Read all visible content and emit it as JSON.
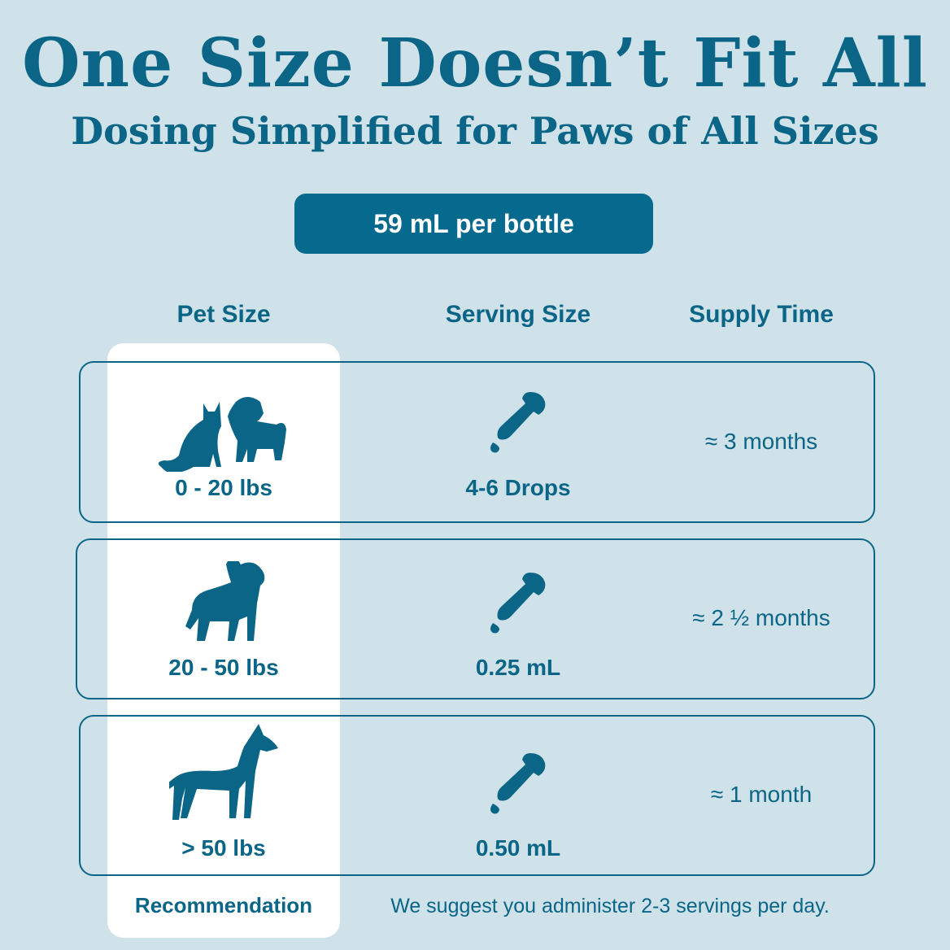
{
  "header": {
    "title": "One Size Doesn’t Fit All",
    "subtitle": "Dosing Simplified for Paws of All Sizes"
  },
  "bottle_badge": "59 mL per bottle",
  "columns": {
    "pet_size": "Pet Size",
    "serving_size": "Serving Size",
    "supply_time": "Supply Time"
  },
  "rows": [
    {
      "pet_size": "0 - 20 lbs",
      "pet_icon": "cat-and-small-dog-icon",
      "serving": "4-6 Drops",
      "serving_icon": "dropper-icon",
      "supply": "≈ 3 months"
    },
    {
      "pet_size": "20 - 50 lbs",
      "pet_icon": "medium-dog-icon",
      "serving": "0.25 mL",
      "serving_icon": "dropper-icon",
      "supply": "≈ 2 ½ months"
    },
    {
      "pet_size": "> 50 lbs",
      "pet_icon": "large-dog-icon",
      "serving": "0.50 mL",
      "serving_icon": "dropper-icon",
      "supply": "≈ 1 month"
    }
  ],
  "footer": {
    "label": "Recommendation",
    "note": "We suggest you administer 2-3 servings per day."
  },
  "colors": {
    "background": "#cfe2e9",
    "accent": "#0b6587",
    "highlight": "#ffffff"
  }
}
